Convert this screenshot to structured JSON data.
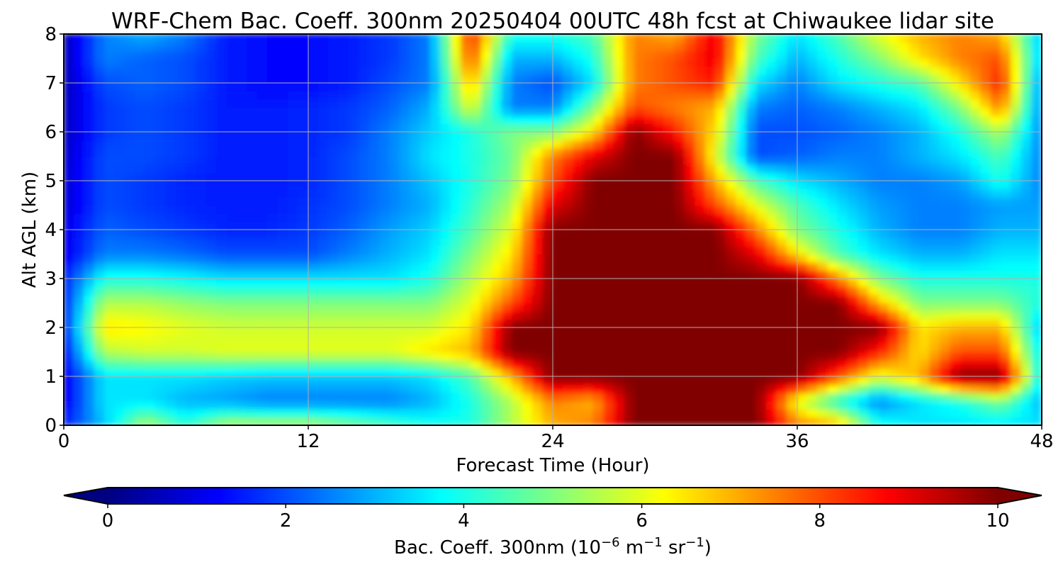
{
  "chart_data": {
    "type": "heatmap",
    "title": "WRF-Chem Bac. Coeff. 300nm  20250404 00UTC 48h fcst at Chiwaukee lidar site",
    "xlabel": "Forecast Time (Hour)",
    "ylabel": "Alt AGL (km)",
    "xlim": [
      0,
      48
    ],
    "ylim": [
      0,
      8
    ],
    "x_ticks": [
      "0",
      "12",
      "24",
      "36",
      "48"
    ],
    "y_ticks": [
      "0",
      "1",
      "2",
      "3",
      "4",
      "5",
      "6",
      "7",
      "8"
    ],
    "grid": true,
    "colormap": "jet",
    "colorbar": {
      "label_main": "Bac. Coeff. 300nm  (10",
      "label_exp1": "−6",
      "label_mid": " m",
      "label_exp2": "−1",
      "label_mid2": " sr",
      "label_exp3": "−1",
      "label_end": ")",
      "range": [
        0,
        10
      ],
      "ticks": [
        "0",
        "2",
        "4",
        "6",
        "8",
        "10"
      ],
      "extend": "both"
    },
    "x": [
      0,
      2,
      4,
      6,
      8,
      10,
      12,
      14,
      16,
      18,
      20,
      22,
      24,
      26,
      28,
      30,
      32,
      34,
      36,
      38,
      40,
      42,
      44,
      46,
      48
    ],
    "y": [
      0,
      0.5,
      1,
      1.5,
      2,
      2.5,
      3,
      3.5,
      4,
      4.5,
      5,
      5.5,
      6,
      6.5,
      7,
      7.5,
      8
    ],
    "z": [
      [
        1.5,
        3.2,
        5.5,
        4.2,
        5.5,
        5.5,
        5.5,
        5.0,
        4.5,
        4.0,
        4.0,
        5.5,
        7.0,
        7.5,
        10,
        10,
        10,
        10,
        7.5,
        7.0,
        4.0,
        3.5,
        3.5,
        3.5,
        3.5
      ],
      [
        1.0,
        3.5,
        3.5,
        3.0,
        2.8,
        2.5,
        2.5,
        2.5,
        2.5,
        3.0,
        4.0,
        5.5,
        7.5,
        7.0,
        10,
        10,
        10,
        10,
        6.0,
        4.0,
        2.5,
        3.5,
        4.0,
        5.0,
        3.0
      ],
      [
        1.0,
        3.5,
        3.5,
        3.5,
        3.3,
        3.2,
        3.2,
        3.2,
        3.2,
        3.5,
        4.5,
        7.0,
        10,
        10,
        10,
        10,
        10,
        10,
        10,
        8.0,
        6.0,
        7.0,
        10,
        10,
        3.5
      ],
      [
        1.2,
        5.5,
        5.8,
        5.8,
        6.0,
        6.0,
        6.0,
        6.0,
        6.0,
        6.5,
        7.0,
        10,
        10,
        10,
        10,
        10,
        10,
        10,
        10,
        10,
        8.5,
        6.5,
        8.0,
        8.0,
        3.5
      ],
      [
        1.5,
        6.5,
        6.3,
        6.0,
        5.8,
        5.8,
        5.8,
        5.8,
        5.8,
        5.8,
        6.5,
        10,
        10,
        10,
        10,
        10,
        10,
        10,
        10,
        10,
        10,
        6.5,
        7.0,
        7.0,
        3.0
      ],
      [
        1.5,
        5.5,
        5.5,
        5.2,
        5.0,
        5.0,
        5.0,
        5.0,
        5.0,
        5.0,
        6.0,
        8.0,
        10,
        10,
        10,
        10,
        10,
        10,
        10,
        10,
        7.0,
        5.0,
        5.0,
        5.0,
        4.0
      ],
      [
        1.5,
        4.0,
        4.0,
        3.8,
        3.5,
        3.5,
        3.5,
        3.5,
        3.5,
        4.0,
        5.5,
        7.0,
        10,
        10,
        10,
        10,
        10,
        10,
        10,
        7.5,
        5.0,
        4.0,
        4.0,
        4.0,
        4.0
      ],
      [
        1.0,
        2.5,
        2.5,
        2.3,
        2.0,
        2.0,
        2.0,
        2.5,
        3.0,
        3.5,
        5.0,
        6.5,
        10,
        10,
        10,
        10,
        10,
        9.0,
        6.5,
        4.5,
        3.5,
        3.0,
        3.0,
        3.5,
        3.5
      ],
      [
        1.0,
        2.2,
        2.0,
        1.8,
        1.6,
        1.6,
        1.8,
        2.2,
        2.8,
        3.3,
        4.5,
        6.0,
        10,
        10,
        10,
        10,
        10,
        7.5,
        5.0,
        4.0,
        3.0,
        2.5,
        2.5,
        3.0,
        3.0
      ],
      [
        0.8,
        2.0,
        1.8,
        1.6,
        1.5,
        1.5,
        1.7,
        2.0,
        2.5,
        3.0,
        4.2,
        5.5,
        9.0,
        10,
        10,
        10,
        8.0,
        6.0,
        4.5,
        3.5,
        2.8,
        2.5,
        2.5,
        2.8,
        2.8
      ],
      [
        0.8,
        2.0,
        1.8,
        1.6,
        1.5,
        1.5,
        1.6,
        2.0,
        2.5,
        3.2,
        4.0,
        5.0,
        8.0,
        10,
        10,
        10,
        7.0,
        4.5,
        3.5,
        3.0,
        2.5,
        2.5,
        2.8,
        4.0,
        2.5
      ],
      [
        0.7,
        2.0,
        2.0,
        1.8,
        1.5,
        1.5,
        1.6,
        2.0,
        2.5,
        3.5,
        4.0,
        4.8,
        7.5,
        9.0,
        10,
        10,
        6.0,
        2.0,
        2.2,
        2.5,
        2.5,
        3.0,
        3.5,
        4.5,
        2.5
      ],
      [
        0.6,
        1.8,
        2.0,
        1.8,
        1.5,
        1.5,
        1.6,
        1.8,
        2.5,
        3.3,
        4.0,
        5.0,
        5.0,
        6.5,
        10,
        8.5,
        6.5,
        2.0,
        2.0,
        2.2,
        2.5,
        3.0,
        4.0,
        5.5,
        2.5
      ],
      [
        0.6,
        1.8,
        2.0,
        1.8,
        1.5,
        1.5,
        1.6,
        1.8,
        2.2,
        3.0,
        6.0,
        2.5,
        2.5,
        5.0,
        8.0,
        7.5,
        7.0,
        2.5,
        2.2,
        2.5,
        3.0,
        3.5,
        5.0,
        7.5,
        2.5
      ],
      [
        0.5,
        2.0,
        2.2,
        2.0,
        1.5,
        1.3,
        1.3,
        1.5,
        2.0,
        2.5,
        7.0,
        2.5,
        2.0,
        3.5,
        7.5,
        8.0,
        8.5,
        3.5,
        2.5,
        3.5,
        4.0,
        4.5,
        6.5,
        8.5,
        2.5
      ],
      [
        0.5,
        2.5,
        2.2,
        2.0,
        1.5,
        1.3,
        1.3,
        1.5,
        1.8,
        2.5,
        8.0,
        3.0,
        3.0,
        4.0,
        7.5,
        8.0,
        9.0,
        4.5,
        3.0,
        4.0,
        5.0,
        6.5,
        7.5,
        8.0,
        3.0
      ],
      [
        0.5,
        2.5,
        3.0,
        2.5,
        1.5,
        1.3,
        1.3,
        1.5,
        1.8,
        2.5,
        8.5,
        4.0,
        4.0,
        4.5,
        7.5,
        7.0,
        9.0,
        5.0,
        3.5,
        4.5,
        6.0,
        7.0,
        7.5,
        7.0,
        3.0
      ]
    ]
  }
}
